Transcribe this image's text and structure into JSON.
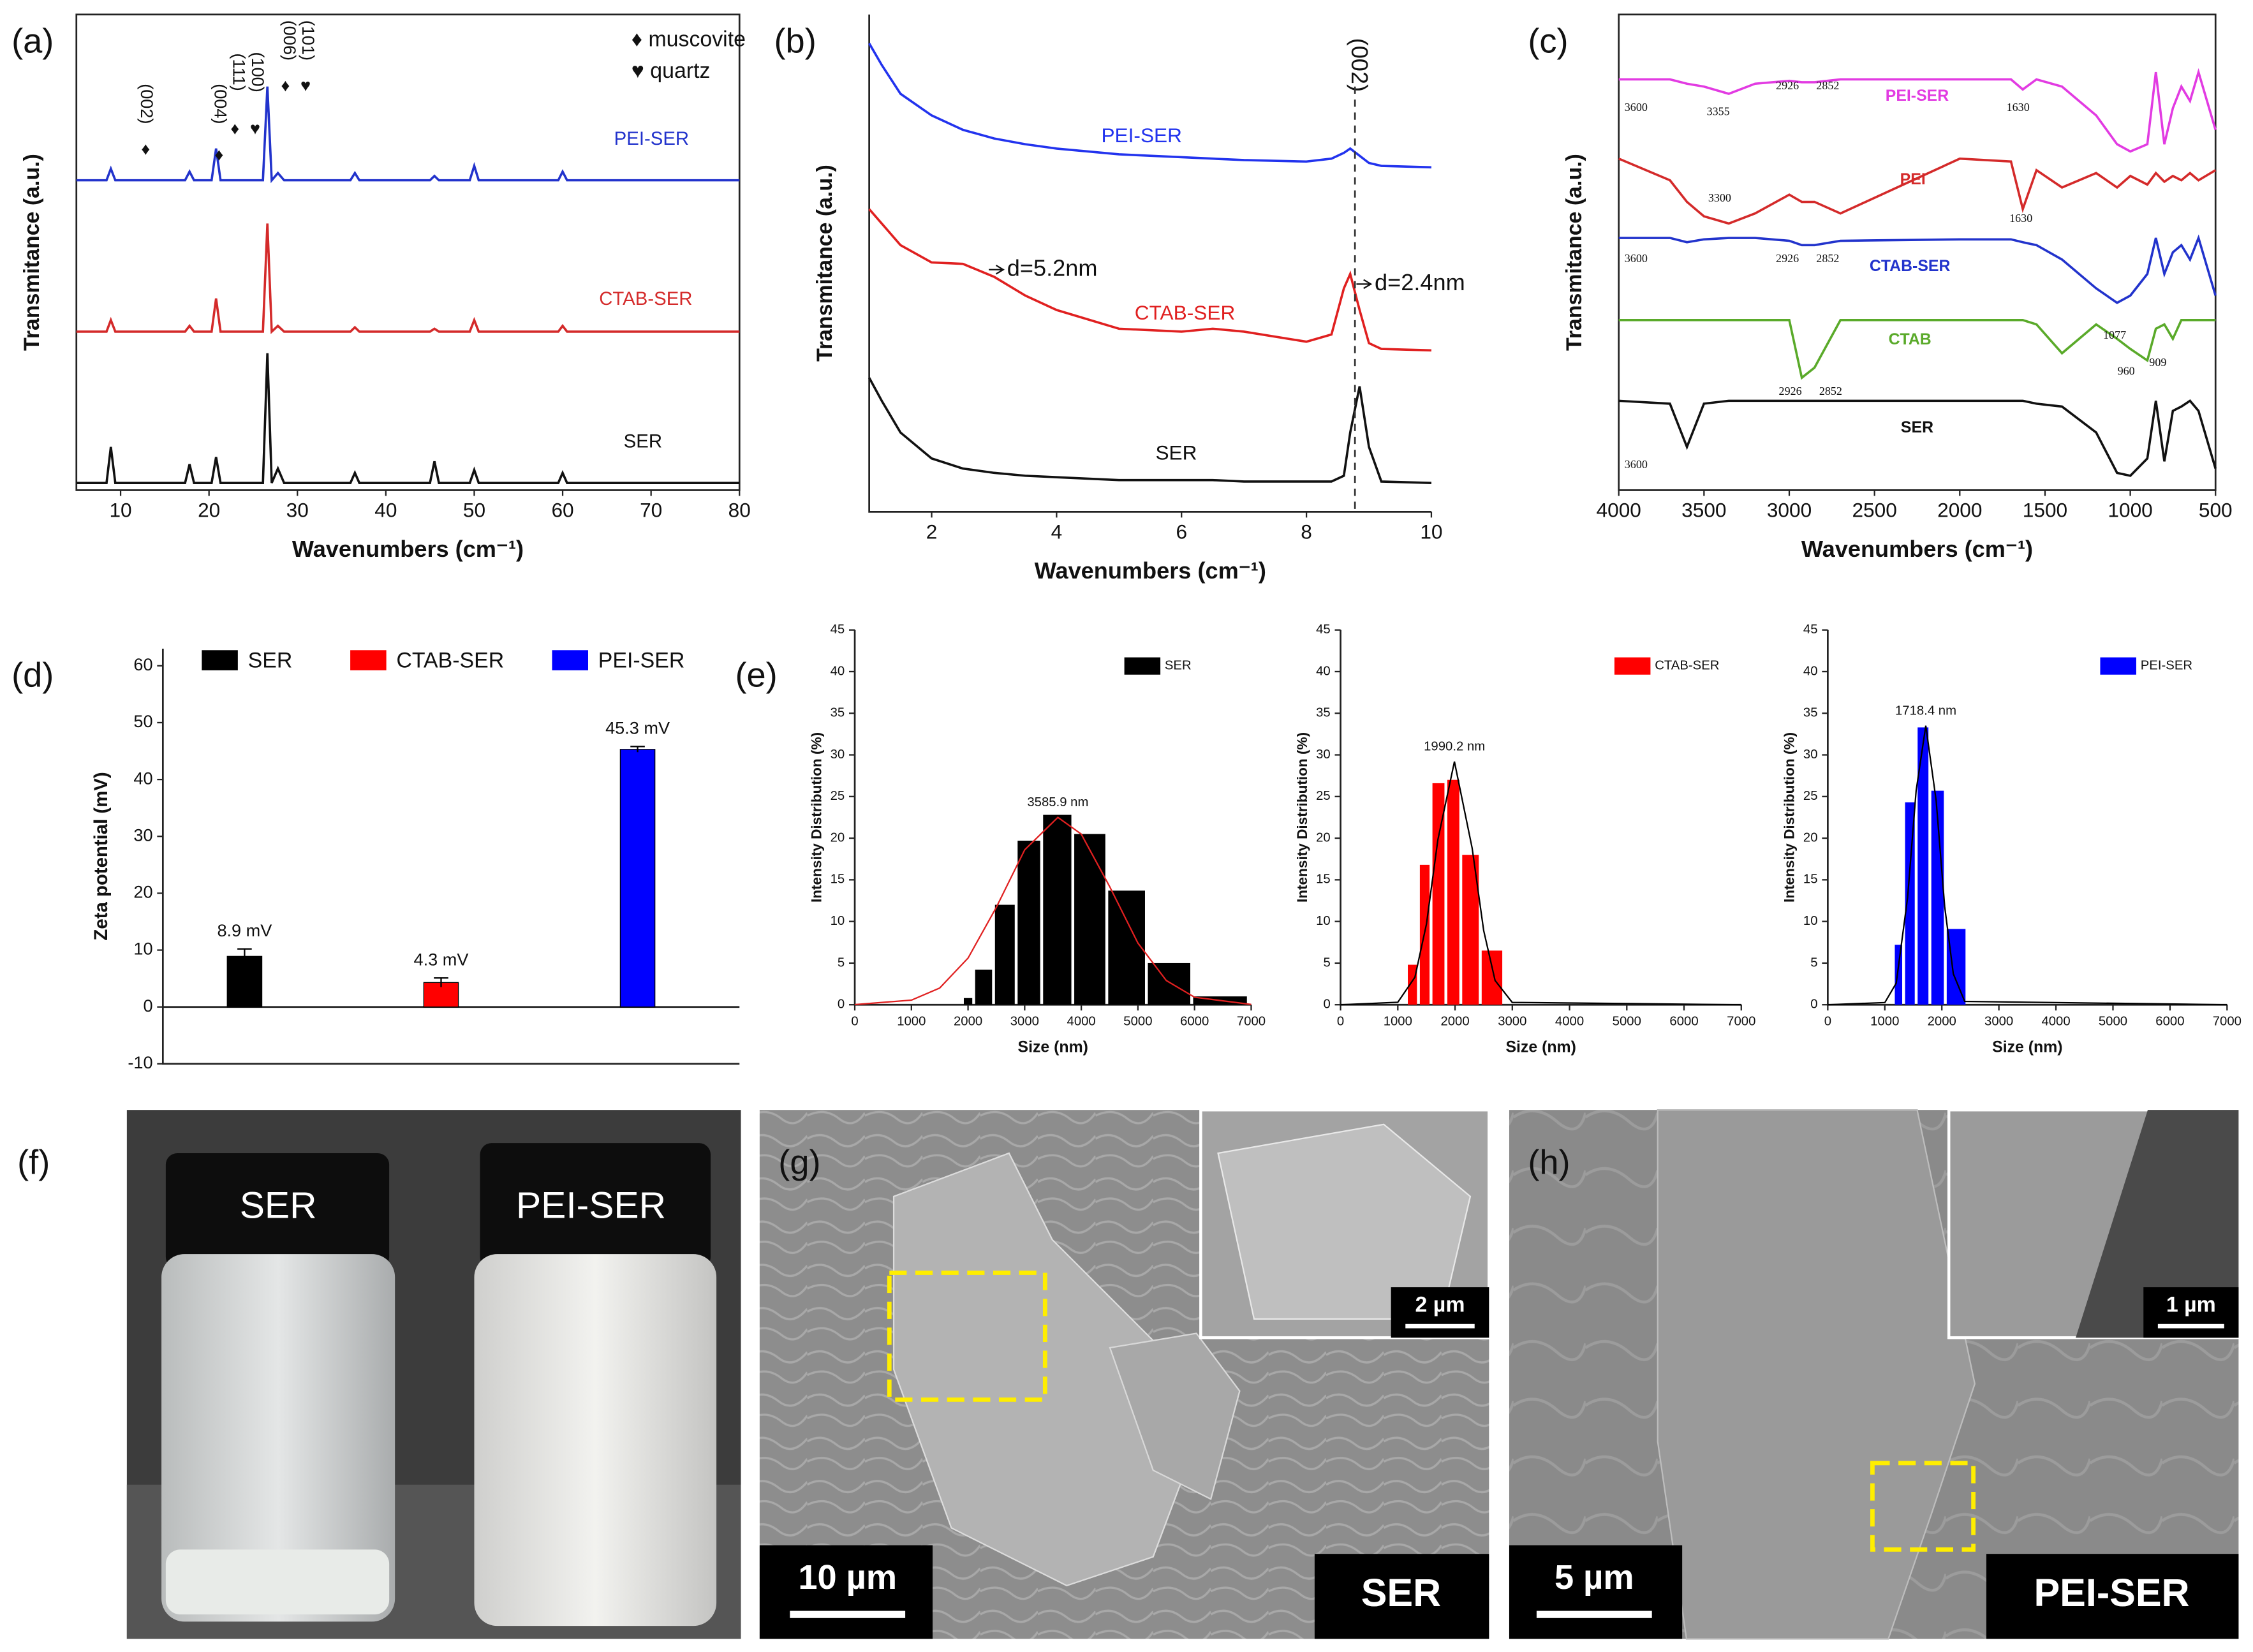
{
  "panel_labels": [
    "(a)",
    "(b)",
    "(c)",
    "(d)",
    "(e)",
    "(f)",
    "(g)",
    "(h)"
  ],
  "chart_data": [
    {
      "type": "line",
      "x_label": "Wavenumbers (cm⁻¹)",
      "y_label": "Transmitance (a.u.)",
      "xlim": [
        5,
        80
      ],
      "xticks": [
        10,
        20,
        30,
        40,
        50,
        60,
        70,
        80
      ],
      "ylim": [
        0,
        330
      ],
      "x": [
        5,
        8.4,
        8.9,
        9.4,
        17.3,
        17.8,
        18.3,
        20.3,
        20.8,
        21.3,
        26.1,
        26.6,
        27.1,
        27.8,
        28.5,
        36,
        36.5,
        37,
        45,
        45.5,
        46,
        49.5,
        50,
        50.5,
        59.5,
        60,
        60.5,
        80
      ],
      "series": [
        {
          "name": "PEI-SER",
          "color": "#2233cc",
          "values": [
            215,
            215,
            223,
            215,
            215,
            221,
            215,
            215,
            237,
            215,
            215,
            280,
            215,
            220,
            215,
            215,
            220,
            215,
            215,
            218,
            215,
            215,
            225,
            215,
            215,
            221,
            215,
            215
          ]
        },
        {
          "name": "CTAB-SER",
          "color": "#d42a2a",
          "values": [
            110,
            110,
            118,
            110,
            110,
            114,
            110,
            110,
            133,
            110,
            110,
            185,
            110,
            114,
            110,
            110,
            113,
            110,
            110,
            112,
            110,
            110,
            118,
            110,
            110,
            114,
            110,
            110
          ]
        },
        {
          "name": "SER",
          "color": "#111111",
          "values": [
            5,
            5,
            30,
            5,
            5,
            18,
            5,
            5,
            23,
            5,
            5,
            95,
            5,
            15,
            5,
            5,
            12,
            5,
            5,
            20,
            5,
            5,
            14,
            5,
            5,
            12,
            5,
            5
          ]
        }
      ],
      "legend": [
        "♦ muscovite",
        "♥ quartz"
      ],
      "annotations": [
        "(002)",
        "♦",
        "(004)",
        "♦",
        "(111)",
        "♦",
        "(100)",
        "♥",
        "(006)",
        "♦",
        "(101)",
        "♥"
      ]
    },
    {
      "type": "line",
      "x_label": "Wavenumbers (cm⁻¹)",
      "y_label": "Transmitance (a.u.)",
      "xlim": [
        1,
        10
      ],
      "xticks": [
        2,
        4,
        6,
        8,
        10
      ],
      "ylim": [
        0,
        345
      ],
      "x": [
        1,
        1.2,
        1.5,
        2,
        2.5,
        3,
        3.5,
        4,
        5,
        6,
        6.5,
        7,
        8,
        8.4,
        8.6,
        8.7,
        8.85,
        9.0,
        9.2,
        10
      ],
      "series": [
        {
          "name": "PEI-SER",
          "color": "#2233ee",
          "values": [
            325,
            310,
            290,
            275,
            265,
            259,
            255,
            252,
            248,
            246,
            245,
            244,
            243,
            245,
            249,
            252,
            247,
            242,
            240,
            239
          ]
        },
        {
          "name": "CTAB-SER",
          "color": "#e02020",
          "values": [
            210,
            200,
            185,
            173,
            172,
            163,
            150,
            140,
            127,
            125,
            127,
            125,
            118,
            123,
            155,
            165,
            140,
            117,
            113,
            112
          ]
        },
        {
          "name": "SER",
          "color": "#111111",
          "values": [
            93,
            77,
            55,
            37,
            30,
            27,
            25,
            24,
            22,
            22,
            22,
            21,
            21,
            21,
            25,
            55,
            87,
            45,
            21,
            20
          ]
        }
      ],
      "annotations": [
        "(002)",
        "d=5.2nm",
        "d=2.4nm"
      ]
    },
    {
      "type": "line",
      "x_label": "Wavenumbers (cm⁻¹)",
      "y_label": "Transmitance (a.u.)",
      "xlim": [
        4000,
        500
      ],
      "xticks": [
        4000,
        3500,
        3000,
        2500,
        2000,
        1500,
        1000,
        500
      ],
      "ylim": [
        0,
        330
      ],
      "x": [
        4000,
        3700,
        3600,
        3500,
        3355,
        3200,
        3000,
        2926,
        2852,
        2700,
        2000,
        1700,
        1630,
        1550,
        1400,
        1200,
        1077,
        1000,
        900,
        850,
        800,
        750,
        700,
        650,
        600,
        500
      ],
      "series": [
        {
          "name": "PEI-SER",
          "color": "#e23be2",
          "values": [
            285,
            285,
            282,
            280,
            275,
            282,
            284,
            283,
            283,
            285,
            285,
            285,
            278,
            285,
            280,
            260,
            240,
            235,
            240,
            290,
            240,
            265,
            280,
            270,
            290,
            250
          ]
        },
        {
          "name": "PEI",
          "color": "#d42a2a",
          "values": [
            230,
            215,
            200,
            190,
            185,
            192,
            205,
            200,
            200,
            192,
            230,
            228,
            195,
            222,
            210,
            220,
            210,
            218,
            212,
            220,
            214,
            218,
            215,
            220,
            215,
            222
          ]
        },
        {
          "name": "CTAB-SER",
          "color": "#2233cc",
          "values": [
            175,
            175,
            172,
            174,
            175,
            175,
            173,
            170,
            170,
            173,
            174,
            174,
            172,
            170,
            160,
            140,
            130,
            135,
            150,
            175,
            150,
            165,
            170,
            160,
            175,
            135
          ]
        },
        {
          "name": "CTAB",
          "color": "#5aaa2a",
          "values": [
            118,
            118,
            118,
            118,
            118,
            118,
            118,
            78,
            85,
            118,
            118,
            118,
            118,
            115,
            95,
            115,
            105,
            98,
            90,
            112,
            115,
            105,
            118,
            118,
            118,
            118
          ]
        },
        {
          "name": "SER",
          "color": "#111111",
          "values": [
            62,
            60,
            30,
            60,
            62,
            62,
            62,
            62,
            62,
            62,
            62,
            62,
            62,
            60,
            58,
            40,
            12,
            10,
            22,
            62,
            20,
            55,
            58,
            62,
            55,
            15
          ]
        }
      ],
      "annotations": [
        "3600",
        "3355",
        "2926",
        "2852",
        "1630",
        "3300",
        "1630",
        "3600",
        "2926",
        "2852",
        "1077",
        "2926",
        "2852",
        "960",
        "909",
        "3600"
      ]
    },
    {
      "type": "bar",
      "y_label": "Zeta potential (mV)",
      "ylim": [
        -10,
        63
      ],
      "yticks": [
        -10,
        0,
        10,
        20,
        30,
        40,
        50,
        60
      ],
      "categories": [
        "SER",
        "CTAB-SER",
        "PEI-SER"
      ],
      "colors": [
        "#000000",
        "#ff0000",
        "#0000ff"
      ],
      "values": [
        8.9,
        4.3,
        45.3
      ],
      "errors": [
        1.3,
        0.8,
        0.5
      ],
      "value_labels": [
        "8.9 mV",
        "4.3 mV",
        "45.3 mV"
      ]
    },
    {
      "type": "histogram",
      "name": "SER",
      "color": "#000000",
      "x_label": "Size (nm)",
      "y_label": "Intensity Distribution (%)",
      "xlim": [
        0,
        7000
      ],
      "xticks": [
        0,
        1000,
        2000,
        3000,
        4000,
        5000,
        6000,
        7000
      ],
      "ylim": [
        0,
        45
      ],
      "yticks": [
        0,
        5,
        10,
        15,
        20,
        25,
        30,
        35,
        40,
        45
      ],
      "bins": [
        1900,
        2100,
        2450,
        2850,
        3300,
        3850,
        4450,
        5150,
        5950,
        6950
      ],
      "values": [
        0.8,
        4.2,
        12,
        19.7,
        22.8,
        20.5,
        13.7,
        5,
        1
      ],
      "fit": {
        "color": "#e02020",
        "x": [
          0,
          1000,
          1500,
          2000,
          2500,
          3000,
          3586,
          4000,
          4500,
          5000,
          5500,
          6000,
          7000
        ],
        "values": [
          0.02,
          0.56,
          2.0,
          5.6,
          11.7,
          18.6,
          22.5,
          20.5,
          14.2,
          7.4,
          2.9,
          0.9,
          0.04
        ]
      },
      "peak_label": "3585.9 nm"
    },
    {
      "type": "histogram",
      "name": "CTAB-SER",
      "color": "#ff0000",
      "x_label": "Size (nm)",
      "y_label": "Intensity Distribution (%)",
      "xlim": [
        0,
        7000
      ],
      "xticks": [
        0,
        1000,
        2000,
        3000,
        4000,
        5000,
        6000,
        7000
      ],
      "ylim": [
        0,
        45
      ],
      "yticks": [
        0,
        5,
        10,
        15,
        20,
        25,
        30,
        35,
        40,
        45
      ],
      "bins": [
        1150,
        1360,
        1580,
        1840,
        2100,
        2440,
        2850
      ],
      "values": [
        4.8,
        16.8,
        26.6,
        27,
        18,
        6.5
      ],
      "fit": {
        "color": "#000000",
        "x": [
          0,
          1000,
          1300,
          1500,
          1700,
          1990,
          2300,
          2500,
          2700,
          3000,
          7000
        ],
        "values": [
          0,
          0.3,
          3.3,
          9.7,
          19.8,
          29.2,
          18.8,
          8.9,
          2.9,
          0.27,
          0
        ]
      },
      "peak_label": "1990.2 nm"
    },
    {
      "type": "histogram",
      "name": "PEI-SER",
      "color": "#0000ff",
      "x_label": "Size (nm)",
      "y_label": "Intensity Distribution (%)",
      "xlim": [
        0,
        7000
      ],
      "xticks": [
        0,
        1000,
        2000,
        3000,
        4000,
        5000,
        6000,
        7000
      ],
      "ylim": [
        0,
        45
      ],
      "yticks": [
        0,
        5,
        10,
        15,
        20,
        25,
        30,
        35,
        40,
        45
      ],
      "bins": [
        1150,
        1330,
        1550,
        1790,
        2060,
        2440
      ],
      "values": [
        7.2,
        24.3,
        33.3,
        25.7,
        9.1
      ],
      "fit": {
        "color": "#000000",
        "x": [
          0,
          1000,
          1200,
          1400,
          1550,
          1718,
          1900,
          2050,
          2200,
          2400,
          7000
        ],
        "values": [
          0,
          0.26,
          2.6,
          12.9,
          25.7,
          33.5,
          24.5,
          11.8,
          3.7,
          0.4,
          0
        ]
      },
      "peak_label": "1718.4 nm"
    }
  ],
  "photos": {
    "f": {
      "labels": [
        "SER",
        "PEI-SER"
      ]
    },
    "g": {
      "scale_bar": "10 µm",
      "inset_scale_bar": "2 µm",
      "sample": "SER"
    },
    "h": {
      "scale_bar": "5 µm",
      "inset_scale_bar": "1 µm",
      "sample": "PEI-SER"
    }
  }
}
